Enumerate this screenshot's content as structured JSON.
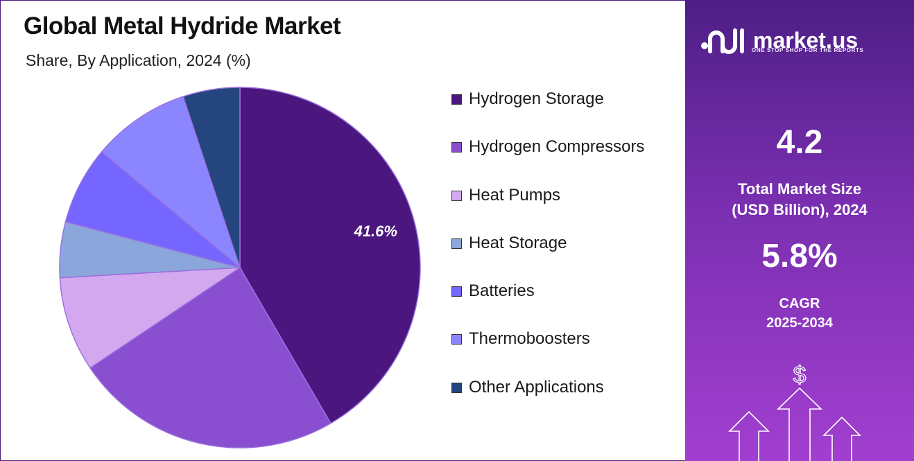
{
  "header": {
    "title": "Global Metal Hydride Market",
    "subtitle": "Share, By Application, 2024 (%)"
  },
  "chart_data": {
    "type": "pie",
    "title": "Global Metal Hydride Market",
    "subtitle": "Share, By Application, 2024 (%)",
    "categories": [
      "Hydrogen Storage",
      "Hydrogen Compressors",
      "Heat Pumps",
      "Heat Storage",
      "Batteries",
      "Thermoboosters",
      "Other Applications"
    ],
    "values": [
      41.6,
      24.0,
      8.5,
      5.0,
      7.0,
      8.8,
      5.1
    ],
    "colors": [
      "#4b167d",
      "#8a4fd0",
      "#d4a8ee",
      "#8aa6da",
      "#7466ff",
      "#8b86ff",
      "#25457e"
    ],
    "data_labels": [
      "41.6%",
      "",
      "",
      "",
      "",
      "",
      ""
    ],
    "legend_position": "right"
  },
  "legend": {
    "items": [
      {
        "label": "Hydrogen Storage",
        "color": "#4b167d"
      },
      {
        "label": "Hydrogen Compressors",
        "color": "#8a4fd0"
      },
      {
        "label": "Heat Pumps",
        "color": "#d4a8ee"
      },
      {
        "label": "Heat Storage",
        "color": "#8aa6da"
      },
      {
        "label": "Batteries",
        "color": "#7466ff"
      },
      {
        "label": "Thermoboosters",
        "color": "#8b86ff"
      },
      {
        "label": "Other Applications",
        "color": "#25457e"
      }
    ]
  },
  "brand": {
    "name": "market.us",
    "tagline": "ONE STOP SHOP FOR THE REPORTS",
    "logo_icon": "market-us-logo-icon"
  },
  "stats": {
    "market_size_value": "4.2",
    "market_size_label_line1": "Total Market Size",
    "market_size_label_line2": "(USD Billion), 2024",
    "cagr_value": "5.8%",
    "cagr_label_line1": "CAGR",
    "cagr_label_line2": "2025-2034",
    "currency_symbol": "$"
  }
}
